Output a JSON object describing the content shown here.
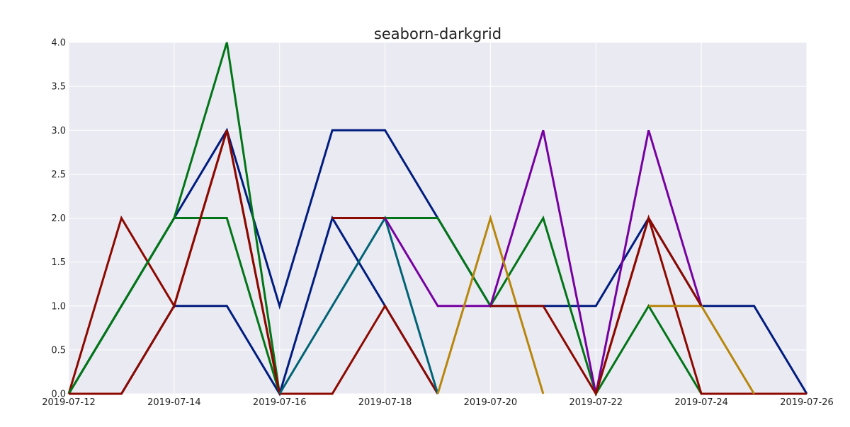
{
  "chart_data": {
    "type": "line",
    "title": "seaborn-darkgrid",
    "xlabel": "",
    "ylabel": "",
    "x_type": "date",
    "xlim": [
      "2019-07-12",
      "2019-07-26"
    ],
    "ylim": [
      0,
      4
    ],
    "xticks": [
      "2019-07-12",
      "2019-07-14",
      "2019-07-16",
      "2019-07-18",
      "2019-07-20",
      "2019-07-22",
      "2019-07-24",
      "2019-07-26"
    ],
    "yticks": [
      "0.0",
      "0.5",
      "1.0",
      "1.5",
      "2.0",
      "2.5",
      "3.0",
      "3.5",
      "4.0"
    ],
    "grid": true,
    "legend": "none",
    "background": "#EAEAF2",
    "gridline_color": "#FFFFFF",
    "x": [
      "2019-07-12",
      "2019-07-13",
      "2019-07-14",
      "2019-07-15",
      "2019-07-16",
      "2019-07-17",
      "2019-07-18",
      "2019-07-19",
      "2019-07-20",
      "2019-07-21",
      "2019-07-22",
      "2019-07-23",
      "2019-07-24",
      "2019-07-25",
      "2019-07-26"
    ],
    "series": [
      {
        "color": "#001C7F",
        "values": [
          0,
          1,
          2,
          3,
          1,
          3,
          3,
          2,
          1,
          1,
          1,
          2,
          1,
          1,
          0
        ]
      },
      {
        "color": "#017517",
        "values": [
          0,
          1,
          2,
          4,
          0,
          null,
          null,
          null,
          null,
          null,
          null,
          null,
          null,
          null,
          null
        ]
      },
      {
        "color": "#8C0900",
        "values": [
          0,
          2,
          1,
          3,
          0,
          null,
          null,
          null,
          null,
          null,
          null,
          null,
          null,
          null,
          null
        ]
      },
      {
        "color": "#001C7F",
        "values": [
          0,
          0,
          1,
          1,
          0,
          2,
          1,
          0,
          null,
          null,
          null,
          null,
          null,
          null,
          null
        ]
      },
      {
        "color": "#017517",
        "values": [
          0,
          1,
          2,
          2,
          0,
          null,
          null,
          null,
          null,
          null,
          null,
          null,
          null,
          null,
          null
        ]
      },
      {
        "color": "#8C0900",
        "values": [
          0,
          0,
          1,
          3,
          0,
          0,
          1,
          0,
          null,
          null,
          null,
          null,
          null,
          null,
          null
        ]
      },
      {
        "color": "#006374",
        "values": [
          null,
          null,
          null,
          null,
          0,
          1,
          2,
          0,
          null,
          null,
          null,
          null,
          null,
          null,
          null
        ]
      },
      {
        "color": "#8C0900",
        "values": [
          null,
          null,
          null,
          null,
          null,
          2,
          2,
          null,
          null,
          null,
          null,
          null,
          null,
          null,
          null
        ]
      },
      {
        "color": "#017517",
        "values": [
          null,
          null,
          null,
          null,
          null,
          null,
          2,
          2,
          1,
          2,
          0,
          1,
          0,
          null,
          null
        ]
      },
      {
        "color": "#7600A1",
        "values": [
          null,
          null,
          null,
          null,
          null,
          null,
          2,
          1,
          1,
          3,
          0,
          3,
          1,
          null,
          null
        ]
      },
      {
        "color": "#B8860B",
        "values": [
          null,
          null,
          null,
          null,
          null,
          null,
          null,
          0,
          2,
          0,
          null,
          null,
          null,
          null,
          null
        ]
      },
      {
        "color": "#8C0900",
        "values": [
          null,
          null,
          null,
          null,
          null,
          null,
          null,
          null,
          1,
          1,
          0,
          2,
          0,
          0,
          0
        ]
      },
      {
        "color": "#B8860B",
        "values": [
          null,
          null,
          null,
          null,
          null,
          null,
          null,
          null,
          null,
          null,
          null,
          1,
          1,
          0,
          null
        ]
      },
      {
        "color": "#8C0900",
        "values": [
          null,
          null,
          null,
          null,
          null,
          null,
          null,
          null,
          null,
          null,
          0,
          2,
          1,
          null,
          null
        ]
      }
    ]
  }
}
